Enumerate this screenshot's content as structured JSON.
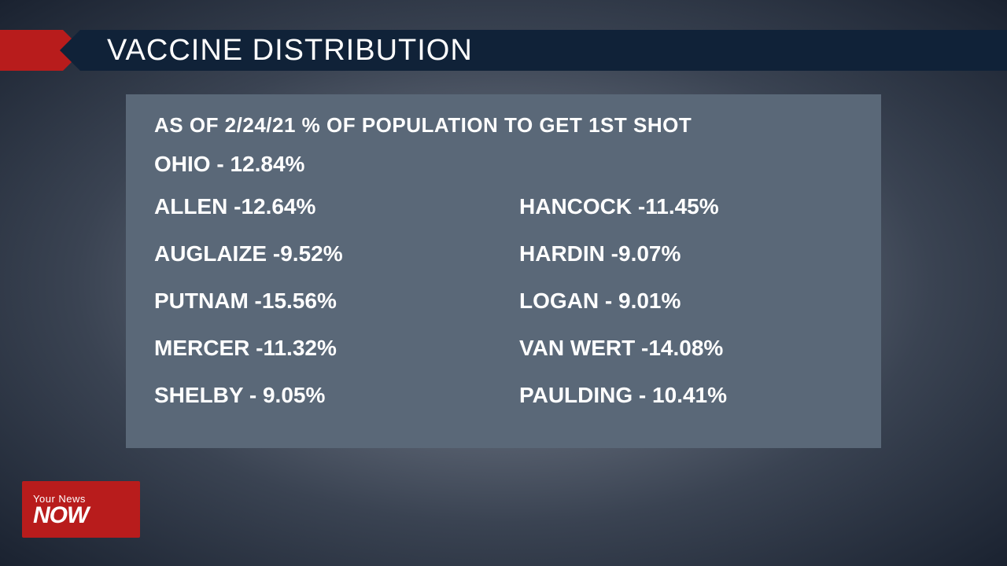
{
  "title": "VACCINE DISTRIBUTION",
  "panel": {
    "subtitle": "AS OF 2/24/21 % OF POPULATION TO GET 1ST SHOT",
    "state": {
      "name": "OHIO",
      "value": "12.84%"
    },
    "counties_left": [
      {
        "name": "ALLEN",
        "value": "12.64%"
      },
      {
        "name": "AUGLAIZE",
        "value": "9.52%"
      },
      {
        "name": "PUTNAM",
        "value": "15.56%"
      },
      {
        "name": "MERCER",
        "value": "11.32%"
      },
      {
        "name": "SHELBY",
        "value": "9.05%"
      }
    ],
    "counties_right": [
      {
        "name": "HANCOCK",
        "value": "11.45%"
      },
      {
        "name": "HARDIN",
        "value": "9.07%"
      },
      {
        "name": "LOGAN",
        "value": "9.01%"
      },
      {
        "name": "VAN WERT",
        "value": "14.08%"
      },
      {
        "name": "PAULDING",
        "value": "10.41%"
      }
    ]
  },
  "logo": {
    "line1": "Your News",
    "line2": "NOW"
  },
  "colors": {
    "accent_red": "#b81c1c",
    "title_bg": "#102238",
    "panel_bg": "#5a6878",
    "text": "#ffffff"
  }
}
